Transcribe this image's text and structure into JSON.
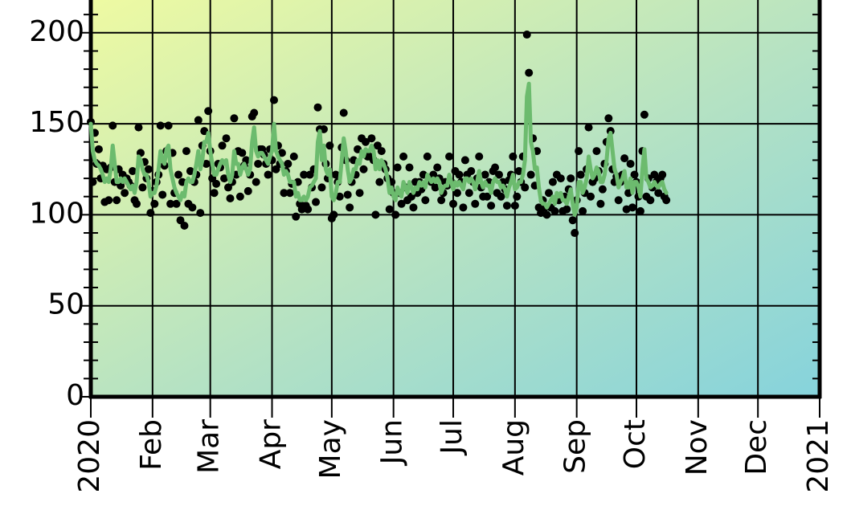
{
  "chart_data": {
    "type": "scatter",
    "xlim": [
      0,
      366
    ],
    "xticks": [
      {
        "value": 0,
        "label": "2020"
      },
      {
        "value": 31,
        "label": "Feb"
      },
      {
        "value": 60,
        "label": "Mar"
      },
      {
        "value": 91,
        "label": "Apr"
      },
      {
        "value": 121,
        "label": "May"
      },
      {
        "value": 152,
        "label": "Jun"
      },
      {
        "value": 182,
        "label": "Jul"
      },
      {
        "value": 213,
        "label": "Aug"
      },
      {
        "value": 244,
        "label": "Sep"
      },
      {
        "value": 274,
        "label": "Oct"
      },
      {
        "value": 305,
        "label": "Nov"
      },
      {
        "value": 335,
        "label": "Dec"
      },
      {
        "value": 366,
        "label": "2021"
      }
    ],
    "ylim": [
      0,
      218
    ],
    "yticks": [
      0,
      50,
      100,
      150,
      200
    ],
    "yminorticks": [
      10,
      20,
      30,
      40,
      60,
      70,
      80,
      90,
      110,
      120,
      130,
      140,
      160,
      170,
      180,
      190,
      210
    ],
    "grid": true,
    "x": [
      0,
      1,
      2,
      3,
      4,
      5,
      6,
      7,
      8,
      9,
      10,
      11,
      12,
      13,
      14,
      15,
      16,
      17,
      18,
      19,
      20,
      21,
      22,
      23,
      24,
      25,
      26,
      27,
      28,
      29,
      30,
      31,
      32,
      33,
      34,
      35,
      36,
      37,
      38,
      39,
      40,
      41,
      42,
      43,
      44,
      45,
      46,
      47,
      48,
      49,
      50,
      51,
      52,
      53,
      54,
      55,
      56,
      57,
      58,
      59,
      60,
      61,
      62,
      63,
      64,
      65,
      66,
      67,
      68,
      69,
      70,
      71,
      72,
      73,
      74,
      75,
      76,
      77,
      78,
      79,
      80,
      81,
      82,
      83,
      84,
      85,
      86,
      87,
      88,
      89,
      90,
      91,
      92,
      93,
      94,
      95,
      96,
      97,
      98,
      99,
      100,
      101,
      102,
      103,
      104,
      105,
      106,
      107,
      108,
      109,
      110,
      111,
      112,
      113,
      114,
      115,
      116,
      117,
      118,
      119,
      120,
      121,
      122,
      123,
      124,
      125,
      126,
      127,
      128,
      129,
      130,
      131,
      132,
      133,
      134,
      135,
      136,
      137,
      138,
      139,
      140,
      141,
      142,
      143,
      144,
      145,
      146,
      147,
      148,
      149,
      150,
      151,
      152,
      153,
      154,
      155,
      156,
      157,
      158,
      159,
      160,
      161,
      162,
      163,
      164,
      165,
      166,
      167,
      168,
      169,
      170,
      171,
      172,
      173,
      174,
      175,
      176,
      177,
      178,
      179,
      180,
      181,
      182,
      183,
      184,
      185,
      186,
      187,
      188,
      189,
      190,
      191,
      192,
      193,
      194,
      195,
      196,
      197,
      198,
      199,
      200,
      201,
      202,
      203,
      204,
      205,
      206,
      207,
      208,
      209,
      210,
      211,
      212,
      213,
      214,
      215,
      216,
      217,
      218,
      219,
      220,
      221,
      222,
      223,
      224,
      225,
      226,
      227,
      228,
      229,
      230,
      231,
      232,
      233,
      234,
      235,
      236,
      237,
      238,
      239,
      240,
      241,
      242,
      243,
      244,
      245,
      246,
      247,
      248,
      249,
      250,
      251,
      252,
      253,
      254,
      255,
      256,
      257,
      258,
      259,
      260,
      261,
      262,
      263,
      264,
      265,
      266,
      267,
      268,
      269,
      270,
      271,
      272,
      273,
      274,
      275,
      276,
      277,
      278,
      279,
      280,
      281,
      282,
      283,
      284,
      285,
      286,
      287,
      288,
      289
    ],
    "series": [
      {
        "type": "scatter",
        "color": "#000000",
        "values": [
          151,
          118,
          145,
          128,
          136,
          120,
          127,
          107,
          125,
          108,
          126,
          149,
          118,
          108,
          125,
          116,
          122,
          112,
          120,
          118,
          116,
          124,
          108,
          106,
          148,
          134,
          115,
          129,
          120,
          125,
          101,
          113,
          106,
          118,
          122,
          149,
          111,
          127,
          135,
          149,
          106,
          134,
          112,
          106,
          122,
          97,
          118,
          94,
          135,
          106,
          124,
          104,
          118,
          122,
          152,
          101,
          138,
          146,
          128,
          157,
          135,
          120,
          112,
          117,
          128,
          126,
          138,
          120,
          142,
          115,
          109,
          118,
          153,
          122,
          135,
          110,
          134,
          127,
          130,
          113,
          122,
          154,
          156,
          118,
          128,
          136,
          136,
          133,
          128,
          122,
          136,
          130,
          163,
          125,
          138,
          128,
          134,
          112,
          124,
          128,
          112,
          117,
          132,
          99,
          118,
          106,
          103,
          122,
          105,
          103,
          122,
          115,
          125,
          107,
          159,
          147,
          115,
          147,
          128,
          120,
          138,
          98,
          100,
          122,
          118,
          110,
          137,
          156,
          130,
          111,
          104,
          118,
          130,
          122,
          136,
          112,
          142,
          125,
          140,
          132,
          132,
          142,
          130,
          100,
          138,
          118,
          135,
          128,
          125,
          120,
          103,
          118,
          112,
          100,
          126,
          112,
          106,
          132,
          115,
          108,
          126,
          110,
          104,
          118,
          112,
          118,
          114,
          122,
          108,
          132,
          120,
          118,
          122,
          115,
          126,
          120,
          108,
          112,
          118,
          116,
          132,
          118,
          106,
          124,
          112,
          122,
          118,
          104,
          130,
          122,
          112,
          124,
          118,
          106,
          120,
          132,
          115,
          110,
          122,
          110,
          118,
          105,
          124,
          126,
          112,
          122,
          110,
          118,
          114,
          105,
          119,
          122,
          132,
          105,
          110,
          124,
          118,
          132,
          115,
          199,
          178,
          122,
          142,
          116,
          135,
          104,
          101,
          108,
          104,
          100,
          112,
          104,
          118,
          102,
          122,
          108,
          120,
          102,
          110,
          103,
          114,
          120,
          97,
          90,
          108,
          135,
          122,
          102,
          112,
          125,
          148,
          110,
          118,
          120,
          135,
          124,
          106,
          114,
          128,
          140,
          153,
          146,
          125,
          118,
          121,
          108,
          118,
          122,
          131,
          103,
          112,
          128,
          104,
          122,
          118,
          110,
          102,
          135,
          155,
          110,
          120,
          108,
          115,
          122,
          118,
          112,
          120,
          122,
          110,
          108
        ]
      },
      {
        "type": "line",
        "color": "#6cbb6e",
        "values": [
          150,
          135,
          130,
          128,
          127,
          125,
          122,
          118,
          120,
          118,
          125,
          138,
          128,
          118,
          118,
          120,
          118,
          120,
          118,
          116,
          114,
          116,
          112,
          118,
          132,
          130,
          125,
          122,
          122,
          118,
          110,
          112,
          112,
          116,
          125,
          135,
          130,
          128,
          136,
          138,
          125,
          120,
          115,
          112,
          110,
          108,
          112,
          110,
          118,
          120,
          118,
          118,
          122,
          128,
          135,
          125,
          130,
          140,
          140,
          145,
          135,
          128,
          122,
          122,
          125,
          128,
          130,
          128,
          130,
          122,
          118,
          122,
          135,
          128,
          128,
          122,
          126,
          128,
          125,
          122,
          125,
          140,
          148,
          135,
          132,
          134,
          134,
          132,
          130,
          128,
          132,
          135,
          150,
          135,
          132,
          130,
          128,
          122,
          124,
          122,
          118,
          118,
          118,
          110,
          112,
          108,
          108,
          110,
          108,
          110,
          115,
          116,
          118,
          120,
          140,
          146,
          130,
          138,
          125,
          122,
          125,
          110,
          108,
          112,
          118,
          118,
          130,
          142,
          135,
          125,
          118,
          120,
          125,
          125,
          130,
          128,
          135,
          132,
          136,
          135,
          135,
          138,
          135,
          125,
          130,
          125,
          130,
          128,
          125,
          120,
          112,
          115,
          110,
          108,
          115,
          112,
          110,
          118,
          115,
          112,
          118,
          115,
          112,
          115,
          114,
          118,
          116,
          118,
          115,
          122,
          120,
          118,
          120,
          118,
          120,
          118,
          112,
          115,
          116,
          116,
          122,
          118,
          114,
          118,
          116,
          118,
          116,
          114,
          120,
          120,
          118,
          120,
          118,
          114,
          118,
          124,
          118,
          115,
          118,
          116,
          116,
          112,
          118,
          120,
          118,
          118,
          115,
          116,
          114,
          110,
          115,
          118,
          122,
          114,
          115,
          118,
          118,
          122,
          130,
          165,
          172,
          140,
          135,
          125,
          126,
          115,
          108,
          106,
          106,
          104,
          106,
          108,
          110,
          106,
          112,
          110,
          112,
          108,
          108,
          106,
          110,
          114,
          106,
          100,
          104,
          118,
          118,
          112,
          115,
          120,
          132,
          125,
          120,
          122,
          126,
          124,
          118,
          118,
          122,
          130,
          142,
          145,
          135,
          125,
          122,
          115,
          118,
          120,
          124,
          115,
          115,
          120,
          112,
          118,
          118,
          115,
          110,
          125,
          136,
          120,
          118,
          115,
          116,
          118,
          116,
          115,
          117,
          118,
          114,
          112
        ]
      }
    ]
  }
}
